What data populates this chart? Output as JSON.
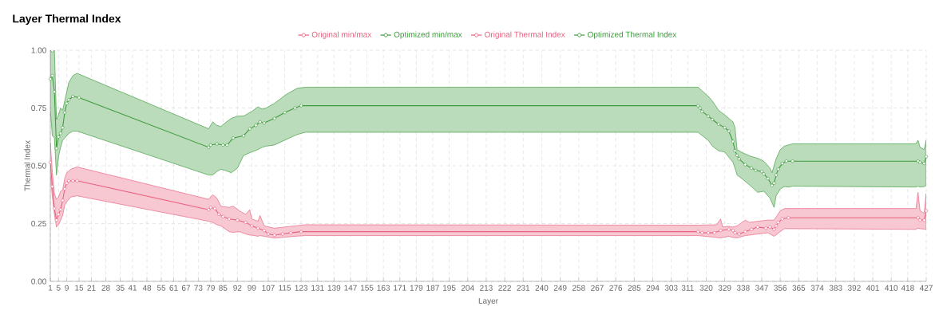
{
  "chart_data": {
    "type": "line",
    "title": "Layer Thermal Index",
    "xlabel": "Layer",
    "ylabel": "Thermal Index",
    "xlim": [
      1,
      427
    ],
    "ylim": [
      0,
      1
    ],
    "xticks": [
      1,
      5,
      9,
      15,
      21,
      28,
      35,
      41,
      48,
      55,
      61,
      67,
      73,
      79,
      85,
      92,
      99,
      107,
      115,
      123,
      131,
      139,
      147,
      155,
      163,
      171,
      179,
      187,
      195,
      204,
      213,
      222,
      231,
      240,
      249,
      258,
      267,
      276,
      285,
      294,
      303,
      311,
      320,
      329,
      338,
      347,
      356,
      365,
      374,
      383,
      392,
      401,
      410,
      418,
      427
    ],
    "yticks": [
      {
        "value": 0,
        "label": "0.00"
      },
      {
        "value": 0.25,
        "label": "0.25"
      },
      {
        "value": 0.5,
        "label": "0.50"
      },
      {
        "value": 0.75,
        "label": "0.75"
      },
      {
        "value": 1,
        "label": "1.00"
      }
    ],
    "grid": true,
    "legend": "top",
    "marker": "circle",
    "series": [
      {
        "name": "Original min/max",
        "color": "#e8607e",
        "x": [
          1,
          2,
          3,
          4,
          5,
          6,
          7,
          8,
          9,
          11,
          14,
          78,
          80,
          82,
          84,
          88,
          90,
          93,
          96,
          98,
          99,
          102,
          103,
          105,
          110,
          120,
          125,
          316,
          325,
          327,
          328,
          331,
          333,
          335,
          339,
          341,
          345,
          350,
          353,
          356,
          358,
          422,
          423,
          424,
          426,
          427
        ],
        "values": [
          null,
          null,
          null,
          null,
          null,
          null,
          null,
          null,
          null,
          null,
          null,
          null,
          null,
          null,
          null,
          null,
          null,
          null,
          null,
          null,
          null,
          null,
          null,
          null,
          null,
          null,
          null,
          null,
          null,
          null,
          null,
          null,
          null,
          null,
          null,
          null,
          null,
          null,
          null,
          null,
          null,
          null,
          null,
          null,
          null,
          null
        ],
        "upper": [
          0.6,
          0.47,
          0.38,
          0.355,
          0.365,
          0.39,
          0.395,
          0.445,
          0.47,
          0.485,
          0.495,
          0.355,
          0.375,
          0.36,
          0.325,
          0.32,
          0.325,
          0.305,
          0.29,
          0.31,
          0.27,
          0.26,
          0.285,
          0.24,
          0.23,
          0.24,
          0.245,
          0.243,
          0.245,
          0.27,
          0.235,
          0.238,
          0.235,
          0.24,
          0.265,
          0.255,
          0.26,
          0.265,
          0.265,
          0.305,
          0.315,
          0.315,
          0.385,
          0.305,
          0.295,
          0.38
        ],
        "lower": [
          0.46,
          0.365,
          0.29,
          0.235,
          0.245,
          0.265,
          0.285,
          0.33,
          0.345,
          0.365,
          0.37,
          0.26,
          0.255,
          0.245,
          0.24,
          0.215,
          0.212,
          0.215,
          0.205,
          0.2,
          0.2,
          0.195,
          0.198,
          0.195,
          0.187,
          0.195,
          0.198,
          0.198,
          0.19,
          0.187,
          0.19,
          0.195,
          0.19,
          0.188,
          0.198,
          0.2,
          0.205,
          0.21,
          0.195,
          0.215,
          0.228,
          0.225,
          0.23,
          0.228,
          0.226,
          0.225
        ]
      },
      {
        "name": "Optimized min/max",
        "color": "#3c9a3c",
        "x": [
          1,
          2,
          3,
          4,
          5,
          6,
          7,
          8,
          10,
          12,
          14,
          78,
          80,
          82,
          84,
          86,
          89,
          92,
          95,
          99,
          102,
          104,
          106,
          110,
          116,
          121,
          125,
          316,
          321,
          323,
          326,
          329,
          333,
          334,
          335,
          338,
          342,
          345,
          348,
          350,
          351,
          352,
          353,
          354,
          356,
          358,
          360,
          362,
          422,
          423,
          424,
          426,
          427
        ],
        "values": [
          null,
          null,
          null,
          null,
          null,
          null,
          null,
          null,
          null,
          null,
          null,
          null,
          null,
          null,
          null,
          null,
          null,
          null,
          null,
          null,
          null,
          null,
          null,
          null,
          null,
          null,
          null,
          null,
          null,
          null,
          null,
          null,
          null,
          null,
          null,
          null,
          null,
          null,
          null,
          null,
          null,
          null,
          null,
          null,
          null,
          null,
          null,
          null,
          null,
          null,
          null,
          null,
          null
        ],
        "upper": [
          1.0,
          0.99,
          1.0,
          0.7,
          0.72,
          0.75,
          0.74,
          0.78,
          0.86,
          0.89,
          0.9,
          0.66,
          0.69,
          0.675,
          0.67,
          0.685,
          0.705,
          0.715,
          0.715,
          0.735,
          0.755,
          0.745,
          0.75,
          0.77,
          0.81,
          0.835,
          0.84,
          0.84,
          0.8,
          0.78,
          0.74,
          0.72,
          0.69,
          0.665,
          0.57,
          0.555,
          0.54,
          0.533,
          0.52,
          0.5,
          0.49,
          0.47,
          0.5,
          0.53,
          0.57,
          0.585,
          0.59,
          0.595,
          0.595,
          0.61,
          0.58,
          0.57,
          0.61
        ],
        "lower": [
          0.74,
          0.63,
          0.62,
          0.46,
          0.54,
          0.58,
          0.61,
          0.62,
          0.64,
          0.65,
          0.65,
          0.46,
          0.46,
          0.475,
          0.485,
          0.48,
          0.47,
          0.49,
          0.545,
          0.56,
          0.57,
          0.58,
          0.585,
          0.59,
          0.615,
          0.635,
          0.645,
          0.645,
          0.61,
          0.585,
          0.565,
          0.56,
          0.515,
          0.49,
          0.46,
          0.44,
          0.41,
          0.385,
          0.39,
          0.37,
          0.36,
          0.34,
          0.32,
          0.37,
          0.4,
          0.41,
          0.408,
          0.412,
          0.408,
          0.412,
          0.408,
          0.41,
          0.415
        ]
      },
      {
        "name": "Original Thermal Index",
        "color": "#e8607e",
        "x": [
          1,
          2,
          3,
          4,
          5,
          6,
          7,
          8,
          9,
          10,
          12,
          14,
          78,
          79,
          81,
          83,
          85,
          88,
          92,
          96,
          99,
          102,
          105,
          107,
          110,
          114,
          118,
          123,
          316,
          318,
          321,
          324,
          327,
          331,
          333,
          334,
          336,
          339,
          342,
          345,
          349,
          351,
          353,
          354,
          355,
          357,
          360,
          423,
          424,
          426,
          427
        ],
        "values": [
          0.515,
          0.41,
          0.315,
          0.265,
          0.29,
          0.31,
          0.35,
          0.4,
          0.425,
          0.435,
          0.435,
          0.435,
          0.31,
          0.32,
          0.315,
          0.29,
          0.28,
          0.27,
          0.265,
          0.255,
          0.24,
          0.23,
          0.22,
          0.205,
          0.2,
          0.205,
          0.21,
          0.215,
          0.215,
          0.21,
          0.21,
          0.21,
          0.22,
          0.225,
          0.22,
          0.21,
          0.205,
          0.215,
          0.225,
          0.235,
          0.23,
          0.235,
          0.225,
          0.24,
          0.255,
          0.27,
          0.275,
          0.275,
          0.265,
          0.265,
          0.305
        ]
      },
      {
        "name": "Optimized Thermal Index",
        "color": "#3c9a3c",
        "x": [
          1,
          2,
          3,
          4,
          5,
          6,
          7,
          8,
          9,
          10,
          12,
          15,
          78,
          79,
          82,
          85,
          87,
          90,
          95,
          98,
          101,
          103,
          105,
          110,
          115,
          120,
          123,
          316,
          317,
          318,
          321,
          323,
          326,
          329,
          331,
          333,
          334,
          335,
          336,
          339,
          342,
          344,
          347,
          348,
          350,
          352,
          353,
          354,
          355,
          357,
          359,
          362,
          423,
          424,
          426,
          427
        ],
        "values": [
          0.875,
          0.89,
          0.82,
          0.575,
          0.625,
          0.64,
          0.665,
          0.73,
          0.77,
          0.785,
          0.8,
          0.795,
          0.58,
          0.59,
          0.595,
          0.59,
          0.59,
          0.62,
          0.63,
          0.66,
          0.675,
          0.69,
          0.685,
          0.705,
          0.73,
          0.75,
          0.76,
          0.76,
          0.75,
          0.735,
          0.715,
          0.7,
          0.68,
          0.665,
          0.65,
          0.605,
          0.565,
          0.545,
          0.53,
          0.505,
          0.49,
          0.48,
          0.475,
          0.465,
          0.445,
          0.415,
          0.425,
          0.46,
          0.485,
          0.51,
          0.52,
          0.52,
          0.52,
          0.515,
          0.51,
          0.54
        ]
      }
    ]
  }
}
